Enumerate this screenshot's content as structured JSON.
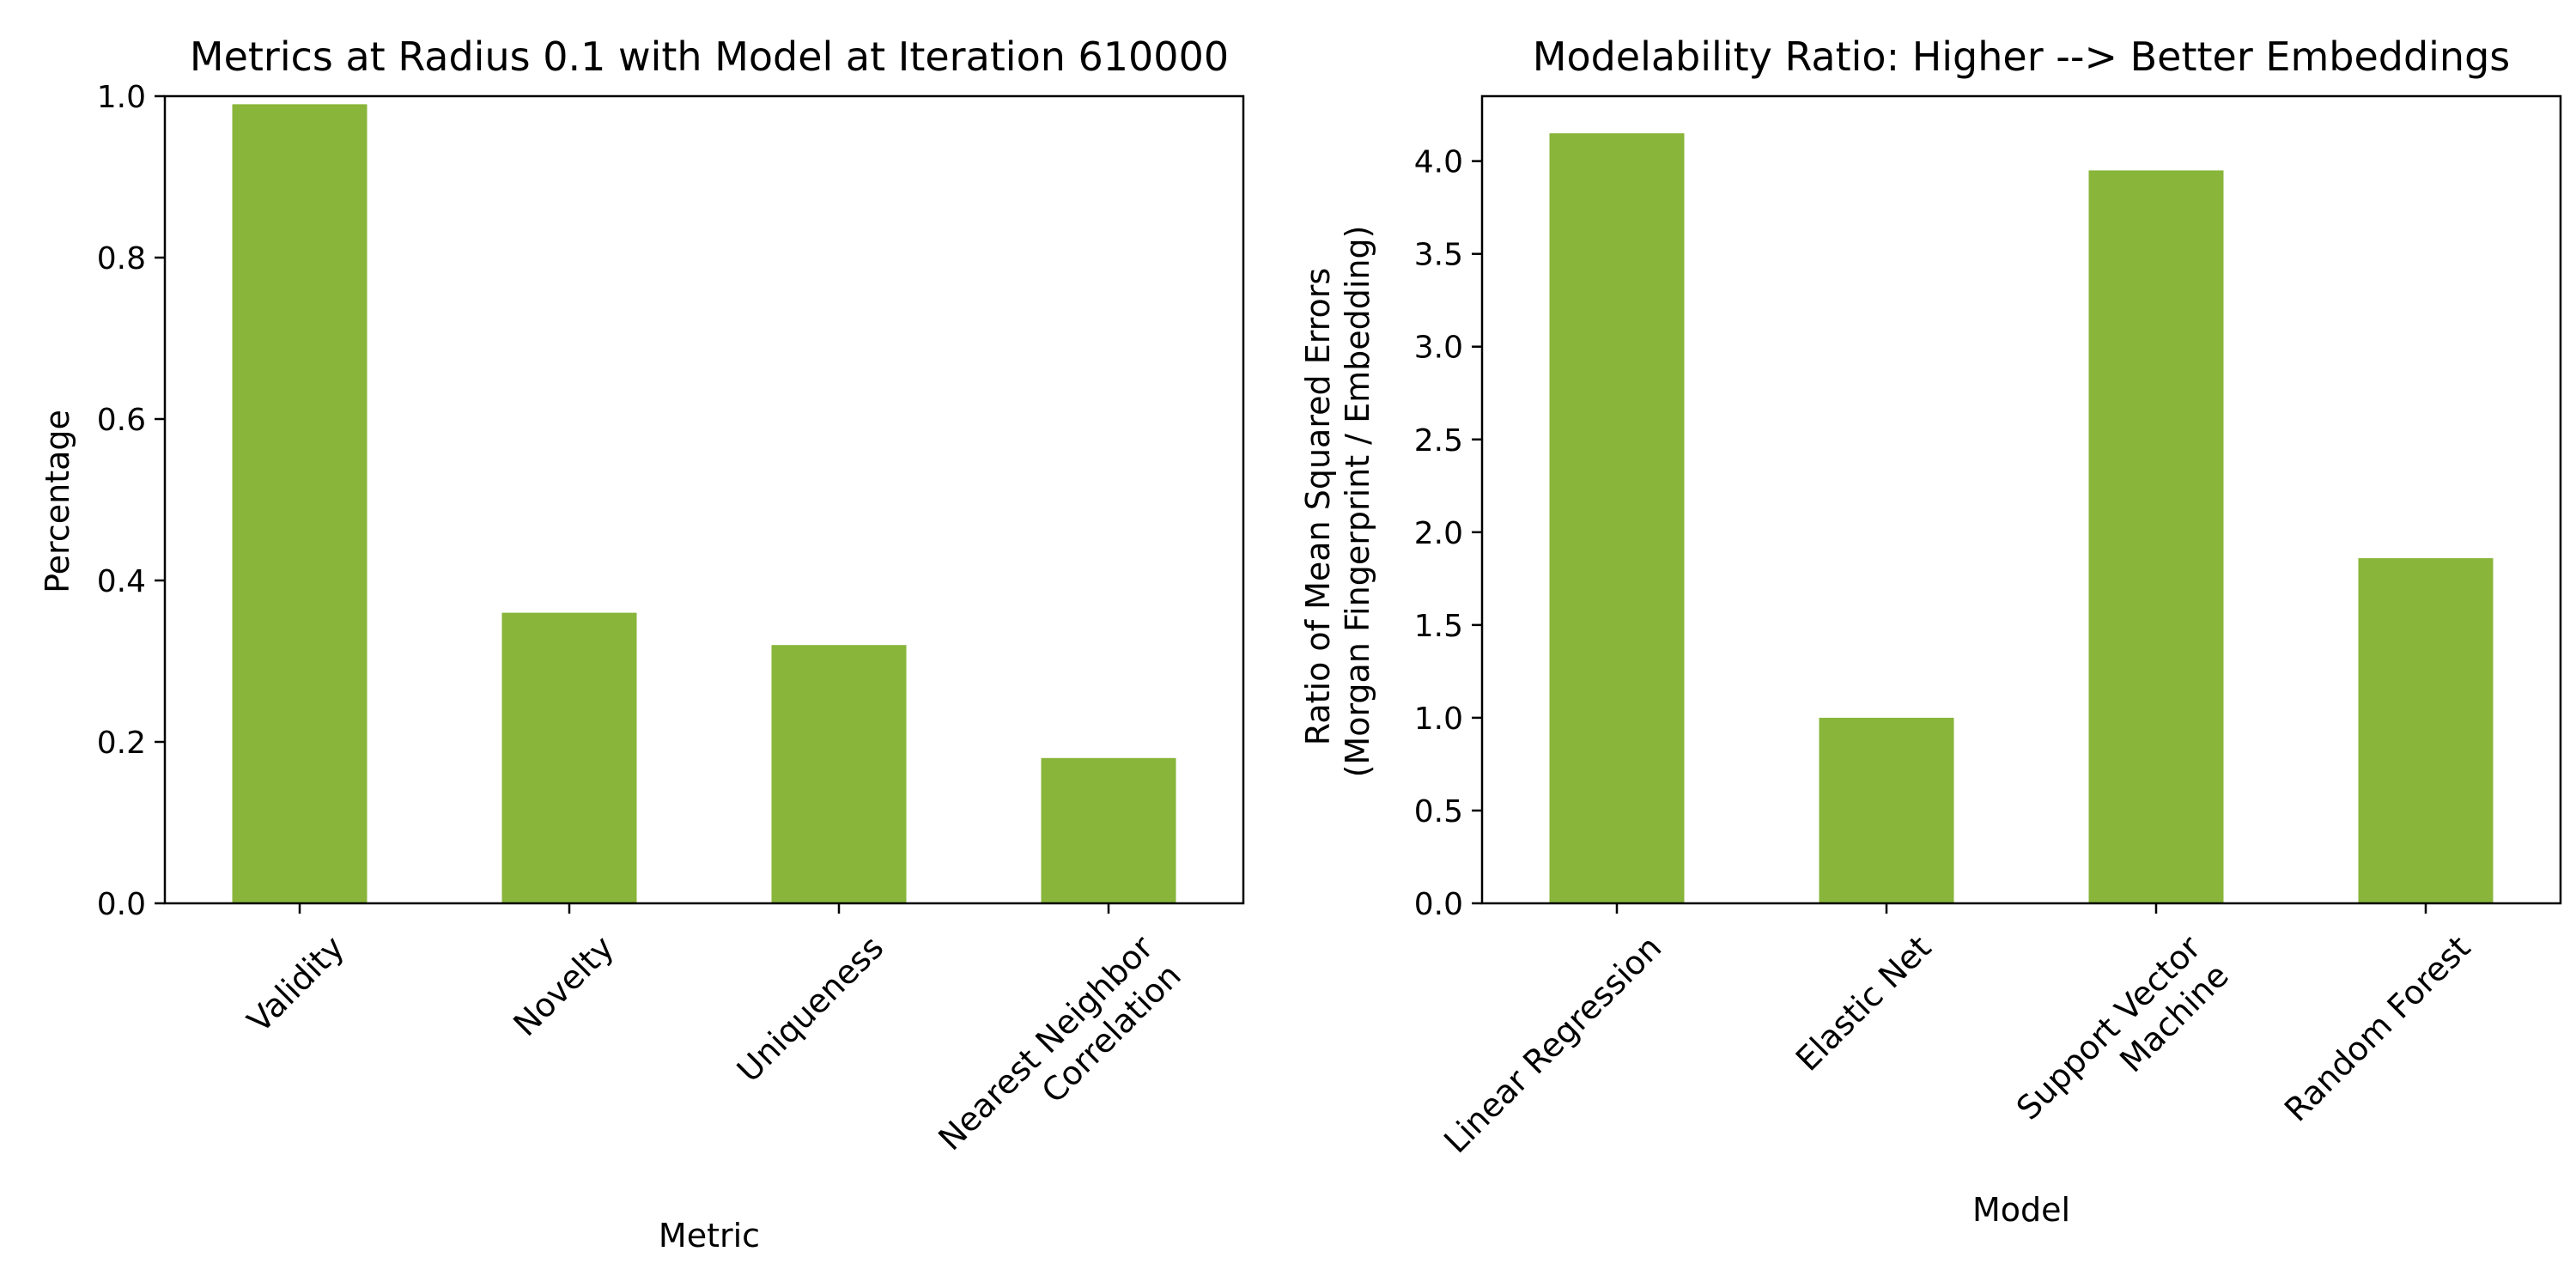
{
  "chart_data": [
    {
      "type": "bar",
      "title": "Metrics at Radius 0.1 with Model at Iteration 610000",
      "xlabel": "Metric",
      "ylabel": "Percentage",
      "categories": [
        "Validity",
        "Novelty",
        "Uniqueness",
        "Nearest Neighbor\nCorrelation"
      ],
      "values": [
        0.99,
        0.36,
        0.32,
        0.18
      ],
      "ylim": [
        0,
        1.0
      ],
      "yticks": [
        0.0,
        0.2,
        0.4,
        0.6,
        0.8,
        1.0
      ],
      "ytick_labels": [
        "0.0",
        "0.2",
        "0.4",
        "0.6",
        "0.8",
        "1.0"
      ],
      "bar_color": "#88b53a",
      "grid": false
    },
    {
      "type": "bar",
      "title": "Modelability Ratio: Higher --> Better Embeddings",
      "xlabel": "Model",
      "ylabel": "Ratio of Mean Squared Errors\n(Morgan Fingerprint / Embedding)",
      "categories": [
        "Linear Regression",
        "Elastic Net",
        "Support Vector\nMachine",
        "Random Forest"
      ],
      "values": [
        4.15,
        1.0,
        3.95,
        1.86
      ],
      "ylim": [
        0,
        4.35
      ],
      "yticks": [
        0.0,
        0.5,
        1.0,
        1.5,
        2.0,
        2.5,
        3.0,
        3.5,
        4.0
      ],
      "ytick_labels": [
        "0.0",
        "0.5",
        "1.0",
        "1.5",
        "2.0",
        "2.5",
        "3.0",
        "3.5",
        "4.0"
      ],
      "bar_color": "#88b53a",
      "grid": false
    }
  ]
}
